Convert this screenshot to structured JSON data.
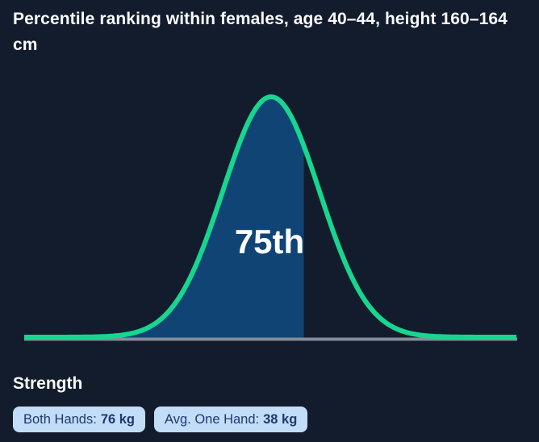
{
  "title": "Percentile ranking within females, age 40–44, height 160–164 cm",
  "chart_data": {
    "type": "area",
    "subtype": "normal-distribution-percentile",
    "description": "Bell curve (standard normal distribution) with the area below the 75th percentile shaded",
    "percentile": 75,
    "percentile_label": "75th",
    "z_cutoff": 0.6745,
    "x_range_sigma": [
      -5.1,
      5.1
    ],
    "grid": false,
    "legend": false,
    "axis_labels": [],
    "colors": {
      "curve": "#17d690",
      "fill": "#0f4475",
      "baseline": "#848c99",
      "background": "#131c2c",
      "label": "#ffffff"
    }
  },
  "section": {
    "heading": "Strength",
    "badges": [
      {
        "label": "Both Hands:",
        "value": "76 kg"
      },
      {
        "label": "Avg. One Hand:",
        "value": "38 kg"
      }
    ]
  }
}
